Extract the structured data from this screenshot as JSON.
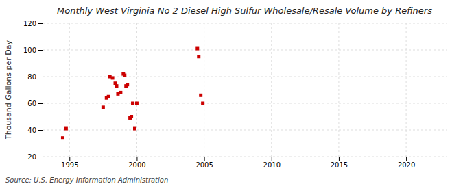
{
  "chart_data": {
    "type": "scatter",
    "title": "Monthly West Virginia No 2 Diesel High Sulfur Wholesale/Resale Volume by Refiners",
    "ylabel": "Thousand Gallons per Day",
    "annotations": [
      "Source: U.S. Energy Information Administration"
    ],
    "x": [
      1994.5,
      1994.75,
      1997.5,
      1997.75,
      1997.9,
      1998.0,
      1998.2,
      1998.4,
      1998.5,
      1998.6,
      1998.8,
      1999.0,
      1999.1,
      1999.2,
      1999.3,
      1999.5,
      1999.6,
      1999.7,
      1999.85,
      2000.0,
      2004.5,
      2004.6,
      2004.75,
      2004.9
    ],
    "values": [
      34,
      41,
      57,
      64,
      65,
      80,
      79,
      75,
      73,
      67,
      68,
      82,
      81,
      73,
      74,
      49,
      50,
      60,
      41,
      60,
      101,
      95,
      66,
      60
    ],
    "color": "#cc0000",
    "marker": "square",
    "xlim": [
      1993,
      2023
    ],
    "ylim": [
      20,
      120
    ],
    "xticks": [
      1995,
      2000,
      2005,
      2010,
      2015,
      2020
    ],
    "yticks": [
      20,
      40,
      60,
      80,
      100,
      120
    ],
    "grid": true
  }
}
